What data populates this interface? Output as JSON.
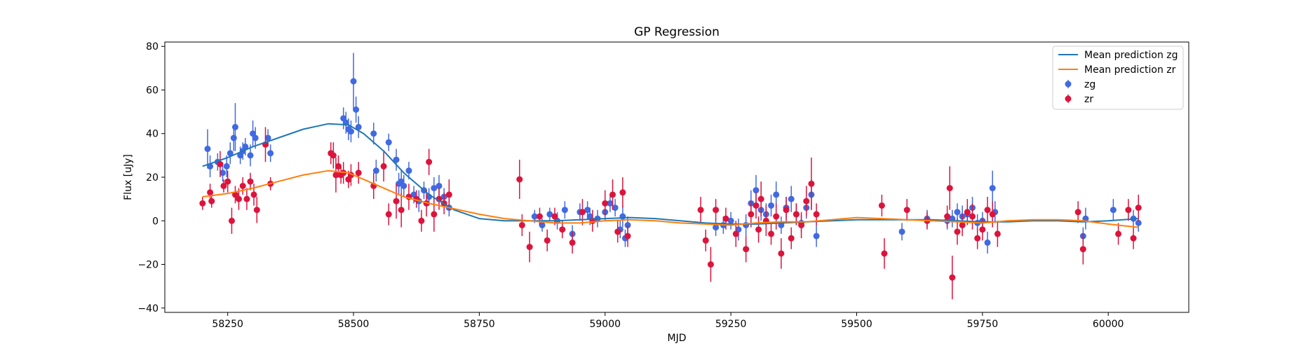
{
  "chart_data": {
    "type": "scatter",
    "title": "GP Regression",
    "xlabel": "MJD",
    "ylabel": "Flux [uJy]",
    "xlim": [
      58125,
      60160
    ],
    "ylim": [
      -42,
      82
    ],
    "xticks": [
      58250,
      58500,
      58750,
      59000,
      59250,
      59500,
      59750,
      60000
    ],
    "yticks": [
      -40,
      -20,
      0,
      20,
      40,
      60,
      80
    ],
    "grid": false,
    "legend_position": "top-right",
    "colors": {
      "mean_zg": "#1f77b4",
      "mean_zr": "#ff7f0e",
      "zg": "#4169e1",
      "zr": "#dc143c"
    },
    "series": [
      {
        "name": "Mean prediction zg",
        "kind": "line",
        "color": "#1f77b4",
        "x": [
          58200,
          58250,
          58300,
          58350,
          58400,
          58450,
          58490,
          58520,
          58560,
          58600,
          58650,
          58700,
          58750,
          58800,
          58850,
          58900,
          58950,
          59000,
          59050,
          59100,
          59150,
          59200,
          59250,
          59300,
          59350,
          59400,
          59450,
          59500,
          59550,
          59600,
          59650,
          59700,
          59750,
          59800,
          59850,
          59900,
          59950,
          60000,
          60060
        ],
        "y": [
          25,
          29,
          34,
          38,
          42,
          44.5,
          44,
          40,
          32,
          22,
          12,
          5,
          1,
          0,
          0,
          0,
          0.5,
          1,
          1.5,
          1,
          0,
          -1,
          -1.5,
          -1.5,
          -1,
          -0.5,
          0,
          0.5,
          0.5,
          0.5,
          0.5,
          0,
          -0.5,
          -0.5,
          0,
          0,
          -0.5,
          0,
          1
        ]
      },
      {
        "name": "Mean prediction zr",
        "kind": "line",
        "color": "#ff7f0e",
        "x": [
          58200,
          58250,
          58300,
          58350,
          58400,
          58450,
          58490,
          58520,
          58560,
          58600,
          58650,
          58700,
          58750,
          58800,
          58850,
          58900,
          58950,
          59000,
          59050,
          59100,
          59150,
          59200,
          59250,
          59300,
          59350,
          59400,
          59450,
          59500,
          59550,
          59600,
          59650,
          59700,
          59750,
          59800,
          59850,
          59900,
          59950,
          60000,
          60060
        ],
        "y": [
          11,
          12.5,
          15,
          18,
          21,
          23,
          22,
          19,
          15,
          11,
          8,
          5.5,
          3,
          1,
          0,
          -1,
          -1,
          0,
          0.5,
          0,
          -1,
          -1.5,
          -2,
          -1,
          -0.5,
          -0.5,
          0.5,
          1.5,
          1,
          0.5,
          0,
          -0.5,
          -1,
          0,
          0.5,
          0.5,
          0,
          -1.5,
          -3
        ]
      },
      {
        "name": "zg",
        "kind": "errorbar",
        "color": "#4169e1",
        "x": [
          58210,
          58215,
          58230,
          58240,
          58248,
          58255,
          58262,
          58265,
          58275,
          58280,
          58285,
          58295,
          58300,
          58305,
          58330,
          58335,
          58480,
          58485,
          58490,
          58495,
          58500,
          58505,
          58510,
          58540,
          58545,
          58570,
          58585,
          58590,
          58595,
          58600,
          58610,
          58620,
          58630,
          58640,
          58650,
          58660,
          58670,
          58680,
          58690,
          58860,
          58875,
          58890,
          58905,
          58920,
          58935,
          58950,
          58965,
          58970,
          58985,
          59000,
          59010,
          59020,
          59030,
          59035,
          59040,
          59045,
          59220,
          59235,
          59250,
          59265,
          59280,
          59290,
          59300,
          59310,
          59320,
          59330,
          59340,
          59350,
          59360,
          59370,
          59380,
          59390,
          59400,
          59410,
          59420,
          59590,
          59640,
          59680,
          59690,
          59700,
          59710,
          59720,
          59730,
          59740,
          59750,
          59760,
          59770,
          59775,
          59950,
          59955,
          60010,
          60050,
          60060
        ],
        "y": [
          33,
          25,
          27,
          22,
          25,
          31,
          38,
          43,
          30,
          32,
          34,
          30,
          40,
          38,
          38,
          31,
          47,
          45,
          42,
          41,
          64,
          51,
          43,
          40,
          23,
          36,
          28,
          17,
          18,
          16,
          23,
          12,
          9,
          14,
          11,
          15,
          16,
          11,
          6,
          2,
          -2,
          3,
          0,
          5,
          -6,
          4,
          5,
          2,
          1,
          4,
          8,
          6,
          -4,
          2,
          -8,
          -2,
          -3,
          -2,
          0,
          -4,
          -2,
          8,
          14,
          5,
          3,
          7,
          12,
          -2,
          6,
          10,
          3,
          -1,
          6,
          12,
          -7,
          -5,
          1,
          0,
          1,
          4,
          2,
          3,
          6,
          -1,
          0,
          -10,
          15,
          4,
          -7,
          1,
          5,
          1,
          -1
        ],
        "err": [
          9,
          5,
          4,
          4,
          5,
          5,
          6,
          11,
          4,
          4,
          4,
          5,
          6,
          5,
          4,
          4,
          5,
          5,
          5,
          5,
          13,
          6,
          5,
          5,
          5,
          4,
          5,
          5,
          5,
          5,
          4,
          4,
          5,
          4,
          4,
          5,
          5,
          4,
          4,
          3,
          3,
          3,
          4,
          4,
          4,
          4,
          4,
          4,
          4,
          4,
          4,
          4,
          4,
          5,
          4,
          4,
          4,
          4,
          4,
          5,
          5,
          6,
          7,
          5,
          5,
          5,
          6,
          4,
          5,
          6,
          5,
          4,
          5,
          7,
          5,
          4,
          4,
          4,
          4,
          4,
          5,
          4,
          5,
          4,
          4,
          5,
          8,
          5,
          4,
          5,
          5,
          4,
          4
        ]
      },
      {
        "name": "zr",
        "kind": "errorbar",
        "color": "#dc143c",
        "x": [
          58200,
          58215,
          58218,
          58235,
          58242,
          58250,
          58258,
          58265,
          58272,
          58280,
          58288,
          58295,
          58302,
          58308,
          58325,
          58335,
          58455,
          58460,
          58465,
          58470,
          58475,
          58480,
          58490,
          58495,
          58510,
          58540,
          58560,
          58570,
          58585,
          58595,
          58610,
          58625,
          58635,
          58645,
          58650,
          58660,
          58670,
          58680,
          58690,
          58830,
          58835,
          58850,
          58870,
          58885,
          58900,
          58915,
          58935,
          58955,
          58975,
          59000,
          59015,
          59025,
          59035,
          59045,
          59190,
          59200,
          59210,
          59220,
          59240,
          59260,
          59280,
          59290,
          59300,
          59305,
          59310,
          59320,
          59330,
          59340,
          59350,
          59360,
          59370,
          59380,
          59390,
          59400,
          59410,
          59420,
          59550,
          59555,
          59600,
          59640,
          59680,
          59685,
          59690,
          59700,
          59710,
          59720,
          59730,
          59740,
          59750,
          59760,
          59770,
          59780,
          59940,
          59950,
          60020,
          60040,
          60050,
          60060
        ],
        "y": [
          8,
          13,
          9,
          26,
          16,
          18,
          0,
          12,
          10,
          16,
          10,
          18,
          12,
          5,
          35,
          17,
          31,
          30,
          21,
          25,
          21,
          22,
          19,
          21,
          22,
          16,
          25,
          3,
          9,
          5,
          11,
          10,
          0,
          8,
          27,
          3,
          10,
          8,
          12,
          19,
          -2,
          -12,
          2,
          -9,
          2,
          -4,
          -10,
          4,
          0,
          8,
          12,
          -5,
          13,
          -7,
          5,
          -9,
          -20,
          5,
          1,
          -6,
          -13,
          3,
          7,
          -4,
          10,
          0,
          -6,
          2,
          -15,
          5,
          -8,
          3,
          -2,
          9,
          17,
          3,
          7,
          -15,
          5,
          0,
          2,
          15,
          -26,
          -5,
          -2,
          4,
          2,
          -8,
          -4,
          5,
          3,
          -6,
          4,
          -13,
          -6,
          5,
          -8,
          6
        ],
        "err": [
          3,
          4,
          3,
          6,
          3,
          5,
          6,
          4,
          5,
          4,
          5,
          4,
          5,
          6,
          8,
          3,
          5,
          6,
          8,
          5,
          4,
          5,
          4,
          5,
          5,
          6,
          7,
          5,
          8,
          8,
          6,
          4,
          5,
          6,
          6,
          8,
          5,
          5,
          7,
          9,
          5,
          7,
          4,
          5,
          4,
          4,
          5,
          6,
          5,
          6,
          7,
          5,
          7,
          5,
          6,
          5,
          8,
          5,
          5,
          6,
          6,
          6,
          6,
          6,
          8,
          7,
          5,
          6,
          7,
          6,
          5,
          5,
          6,
          7,
          12,
          5,
          5,
          7,
          5,
          4,
          5,
          10,
          10,
          6,
          5,
          6,
          6,
          5,
          5,
          6,
          6,
          6,
          5,
          7,
          5,
          5,
          5,
          6
        ]
      }
    ]
  }
}
